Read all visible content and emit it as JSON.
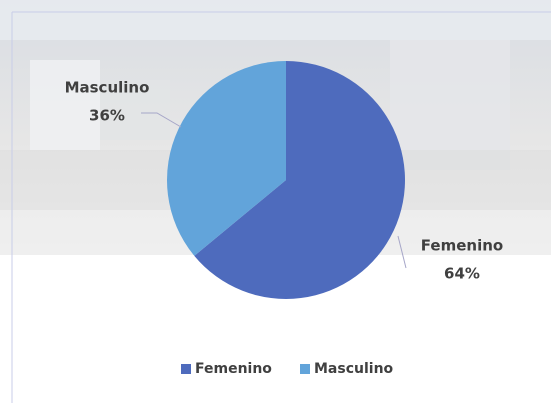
{
  "chart_data": {
    "type": "pie",
    "categories": [
      "Femenino",
      "Masculino"
    ],
    "values": [
      64,
      36
    ],
    "value_labels": [
      "64%",
      "36%"
    ],
    "colors": [
      "#4e6bbd",
      "#62a4da"
    ],
    "legend": "bottom"
  }
}
